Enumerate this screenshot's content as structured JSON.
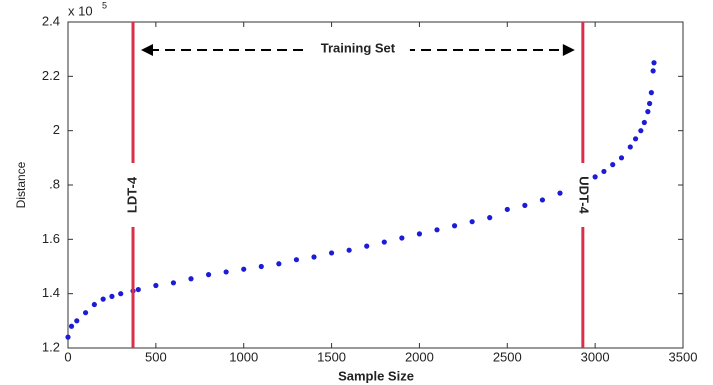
{
  "chart_data": {
    "type": "scatter",
    "x_label": "Sample Size",
    "y_label": "Distance",
    "y_exponent_base": "x 10",
    "y_exponent": "5",
    "span_label": "Training Set",
    "xlim": [
      0,
      3500
    ],
    "xticks": [
      0,
      500,
      1000,
      1500,
      2000,
      2500,
      3000,
      3500
    ],
    "ylim": [
      1.2,
      2.4
    ],
    "yticks": [
      1.2,
      1.4,
      1.6,
      {
        "value": 1.8,
        "label": ".8"
      },
      2,
      2.2,
      2.4
    ],
    "grid": false,
    "series": [
      {
        "color": "#1c1cd6",
        "x": [
          0,
          20,
          50,
          100,
          150,
          200,
          250,
          300,
          370,
          400,
          500,
          600,
          700,
          800,
          900,
          1000,
          1100,
          1200,
          1300,
          1400,
          1500,
          1600,
          1700,
          1800,
          1900,
          2000,
          2100,
          2200,
          2300,
          2400,
          2500,
          2600,
          2700,
          2800,
          2900,
          2930,
          3000,
          3050,
          3100,
          3150,
          3200,
          3230,
          3260,
          3280,
          3300,
          3310,
          3320,
          3330,
          3335
        ],
        "values": [
          1.24,
          1.28,
          1.3,
          1.33,
          1.36,
          1.38,
          1.39,
          1.4,
          1.41,
          1.415,
          1.43,
          1.44,
          1.455,
          1.47,
          1.48,
          1.49,
          1.5,
          1.51,
          1.525,
          1.535,
          1.55,
          1.56,
          1.575,
          1.59,
          1.605,
          1.62,
          1.635,
          1.65,
          1.665,
          1.68,
          1.71,
          1.725,
          1.745,
          1.77,
          1.8,
          1.81,
          1.83,
          1.85,
          1.875,
          1.9,
          1.94,
          1.97,
          2.0,
          2.03,
          2.07,
          2.1,
          2.14,
          2.22,
          2.25
        ]
      }
    ],
    "vlines": [
      {
        "x": 370,
        "label": "LDT-4",
        "color": "#d9304a"
      },
      {
        "x": 2930,
        "label": "UDT-4",
        "color": "#d9304a"
      }
    ]
  }
}
